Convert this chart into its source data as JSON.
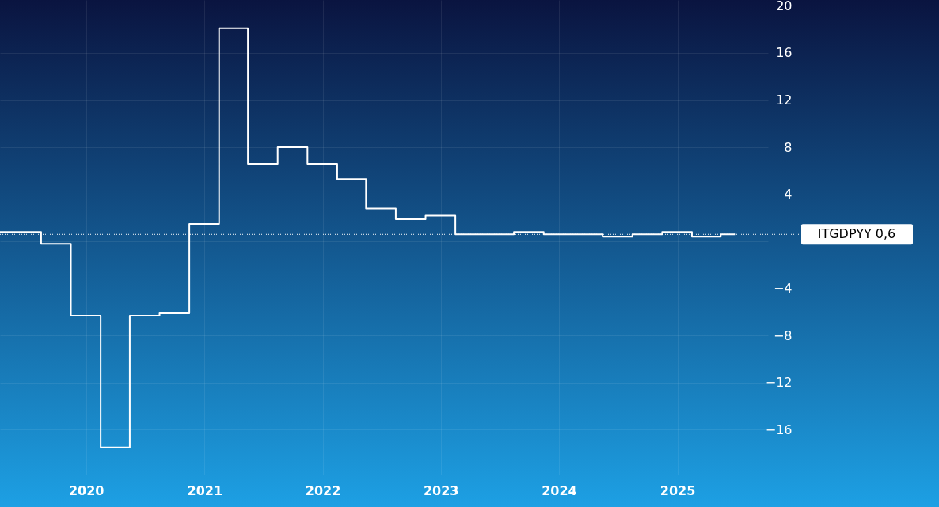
{
  "chart_data": {
    "type": "step",
    "x": [
      "2019-04-10",
      "2019-08-15",
      "2019-11-15",
      "2020-02-15",
      "2020-05-15",
      "2020-08-15",
      "2020-11-15",
      "2021-02-15",
      "2021-05-15",
      "2021-08-15",
      "2021-11-15",
      "2022-02-15",
      "2022-05-15",
      "2022-08-15",
      "2022-11-15",
      "2023-02-15",
      "2023-05-15",
      "2023-08-15",
      "2023-11-15",
      "2024-02-15",
      "2024-05-15",
      "2024-08-15",
      "2024-11-15",
      "2025-02-15",
      "2025-05-15",
      "2025-06-28"
    ],
    "series": [
      {
        "color": "#ffffff",
        "values": [
          0.8,
          -0.2,
          -6.3,
          -17.5,
          -6.3,
          -6.1,
          1.5,
          18.1,
          6.6,
          8.0,
          6.6,
          5.3,
          2.8,
          1.9,
          2.2,
          0.6,
          0.6,
          0.8,
          0.6,
          0.6,
          0.4,
          0.6,
          0.8,
          0.4,
          0.6,
          0.6
        ]
      }
    ],
    "xlim": [
      "2019-04-10",
      "2025-10-08"
    ],
    "xticks": [
      {
        "value": "2020",
        "label": "2020"
      },
      {
        "value": "2021",
        "label": "2021"
      },
      {
        "value": "2022",
        "label": "2022"
      },
      {
        "value": "2023",
        "label": "2023"
      },
      {
        "value": "2024",
        "label": "2024"
      },
      {
        "value": "2025",
        "label": "2025"
      }
    ],
    "ylim": [
      -19.8,
      20.5
    ],
    "yticks": [
      {
        "value": -16,
        "label": "−16"
      },
      {
        "value": -12,
        "label": "−12"
      },
      {
        "value": -8,
        "label": "−8"
      },
      {
        "value": -4,
        "label": "−4"
      },
      {
        "value": 0,
        "label": null
      },
      4,
      8,
      12,
      16,
      20
    ],
    "ref_lines": [
      {
        "axis": "y",
        "value": 0.6,
        "label": "ITGDPYY  0,6",
        "color": "#ffffff",
        "line_style": "dotted"
      }
    ],
    "grid": true,
    "line_style": "solid",
    "marker": "none"
  }
}
